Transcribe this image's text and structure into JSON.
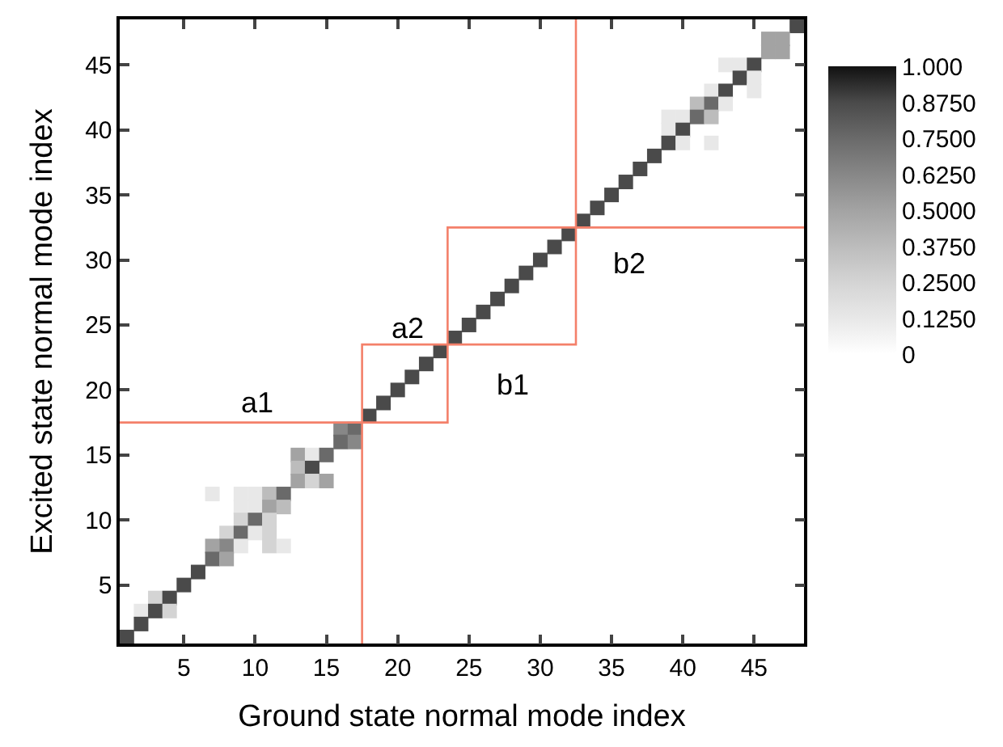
{
  "chart_data": {
    "type": "heatmap",
    "xlabel": "Ground state normal mode index",
    "ylabel": "Excited state normal mode index",
    "x": [
      1,
      2,
      3,
      4,
      5,
      6,
      7,
      8,
      9,
      10,
      11,
      12,
      13,
      14,
      15,
      16,
      17,
      18,
      19,
      20,
      21,
      22,
      23,
      24,
      25,
      26,
      27,
      28,
      29,
      30,
      31,
      32,
      33,
      34,
      35,
      36,
      37,
      38,
      39,
      40,
      41,
      42,
      43,
      44,
      45,
      46,
      47,
      48
    ],
    "y": [
      48,
      47,
      46,
      45,
      44,
      43,
      42,
      41,
      40,
      39,
      38,
      37,
      36,
      35,
      34,
      33,
      32,
      31,
      30,
      29,
      28,
      27,
      26,
      25,
      24,
      23,
      22,
      21,
      20,
      19,
      18,
      17,
      16,
      15,
      14,
      13,
      12,
      11,
      10,
      9,
      8,
      7,
      6,
      5,
      4,
      3,
      2,
      1
    ],
    "xlim": [
      0.5,
      48.5
    ],
    "ylim": [
      0.5,
      48.5
    ],
    "xticks": [
      5,
      10,
      15,
      20,
      25,
      30,
      35,
      40,
      45
    ],
    "yticks": [
      5,
      10,
      15,
      20,
      25,
      30,
      35,
      40,
      45
    ],
    "cticks": [
      0,
      {
        "value": 0.125,
        "label": "0.1250"
      },
      {
        "value": 0.25,
        "label": "0.2500"
      },
      {
        "value": 0.375,
        "label": "0.3750"
      },
      {
        "value": 0.5,
        "label": "0.5000"
      },
      {
        "value": 0.625,
        "label": "0.6250"
      },
      {
        "value": 0.75,
        "label": "0.7500"
      },
      {
        "value": 0.875,
        "label": "0.8750"
      },
      {
        "value": 1.0,
        "label": "1.000"
      }
    ],
    "colors": [
      "#ffffff",
      "#e8e8e8",
      "#d4d4d4",
      "#bcbcbc",
      "#a3a3a3",
      "#878787",
      "#6a6a6a",
      "#4a4a4a",
      "#111111"
    ],
    "cells": [
      [
        null,
        null,
        null,
        null,
        null,
        null,
        null,
        null,
        null,
        null,
        null,
        null,
        null,
        null,
        null,
        null,
        null,
        null,
        null,
        null,
        null,
        null,
        null,
        null,
        null,
        null,
        null,
        null,
        null,
        null,
        null,
        null,
        null,
        null,
        null,
        null,
        null,
        null,
        null,
        null,
        null,
        null,
        null,
        null,
        null,
        null,
        null,
        0.875
      ],
      [
        null,
        null,
        null,
        null,
        null,
        null,
        null,
        null,
        null,
        null,
        null,
        null,
        null,
        null,
        null,
        null,
        null,
        null,
        null,
        null,
        null,
        null,
        null,
        null,
        null,
        null,
        null,
        null,
        null,
        null,
        null,
        null,
        null,
        null,
        null,
        null,
        null,
        null,
        null,
        null,
        null,
        null,
        null,
        null,
        null,
        0.5,
        0.5,
        null
      ],
      [
        null,
        null,
        null,
        null,
        null,
        null,
        null,
        null,
        null,
        null,
        null,
        null,
        null,
        null,
        null,
        null,
        null,
        null,
        null,
        null,
        null,
        null,
        null,
        null,
        null,
        null,
        null,
        null,
        null,
        null,
        null,
        null,
        null,
        null,
        null,
        null,
        null,
        null,
        null,
        null,
        null,
        null,
        null,
        null,
        null,
        0.5,
        0.5,
        null
      ],
      [
        null,
        null,
        null,
        null,
        null,
        null,
        null,
        null,
        null,
        null,
        null,
        null,
        null,
        null,
        null,
        null,
        null,
        null,
        null,
        null,
        null,
        null,
        null,
        null,
        null,
        null,
        null,
        null,
        null,
        null,
        null,
        null,
        null,
        null,
        null,
        null,
        null,
        null,
        null,
        null,
        null,
        null,
        0.125,
        0.125,
        0.875,
        null,
        null,
        null
      ],
      [
        null,
        null,
        null,
        null,
        null,
        null,
        null,
        null,
        null,
        null,
        null,
        null,
        null,
        null,
        null,
        null,
        null,
        null,
        null,
        null,
        null,
        null,
        null,
        null,
        null,
        null,
        null,
        null,
        null,
        null,
        null,
        null,
        null,
        null,
        null,
        null,
        null,
        null,
        null,
        null,
        null,
        null,
        null,
        0.875,
        0.125,
        null,
        null,
        null
      ],
      [
        null,
        null,
        null,
        null,
        null,
        null,
        null,
        null,
        null,
        null,
        null,
        null,
        null,
        null,
        null,
        null,
        null,
        null,
        null,
        null,
        null,
        null,
        null,
        null,
        null,
        null,
        null,
        null,
        null,
        null,
        null,
        null,
        null,
        null,
        null,
        null,
        null,
        null,
        null,
        null,
        null,
        0.125,
        0.875,
        null,
        0.125,
        null,
        null,
        null
      ],
      [
        null,
        null,
        null,
        null,
        null,
        null,
        null,
        null,
        null,
        null,
        null,
        null,
        null,
        null,
        null,
        null,
        null,
        null,
        null,
        null,
        null,
        null,
        null,
        null,
        null,
        null,
        null,
        null,
        null,
        null,
        null,
        null,
        null,
        null,
        null,
        null,
        null,
        null,
        null,
        null,
        0.375,
        0.75,
        0.125,
        null,
        null,
        null,
        null,
        null
      ],
      [
        null,
        null,
        null,
        null,
        null,
        null,
        null,
        null,
        null,
        null,
        null,
        null,
        null,
        null,
        null,
        null,
        null,
        null,
        null,
        null,
        null,
        null,
        null,
        null,
        null,
        null,
        null,
        null,
        null,
        null,
        null,
        null,
        null,
        null,
        null,
        null,
        null,
        null,
        0.125,
        0.125,
        0.75,
        0.375,
        null,
        null,
        null,
        null,
        null,
        null
      ],
      [
        null,
        null,
        null,
        null,
        null,
        null,
        null,
        null,
        null,
        null,
        null,
        null,
        null,
        null,
        null,
        null,
        null,
        null,
        null,
        null,
        null,
        null,
        null,
        null,
        null,
        null,
        null,
        null,
        null,
        null,
        null,
        null,
        null,
        null,
        null,
        null,
        null,
        null,
        0.125,
        0.875,
        null,
        null,
        null,
        null,
        null,
        null,
        null,
        null
      ],
      [
        null,
        null,
        null,
        null,
        null,
        null,
        null,
        null,
        null,
        null,
        null,
        null,
        null,
        null,
        null,
        null,
        null,
        null,
        null,
        null,
        null,
        null,
        null,
        null,
        null,
        null,
        null,
        null,
        null,
        null,
        null,
        null,
        null,
        null,
        null,
        null,
        null,
        null,
        0.875,
        0.125,
        null,
        0.125,
        null,
        null,
        null,
        null,
        null,
        null
      ],
      [
        null,
        null,
        null,
        null,
        null,
        null,
        null,
        null,
        null,
        null,
        null,
        null,
        null,
        null,
        null,
        null,
        null,
        null,
        null,
        null,
        null,
        null,
        null,
        null,
        null,
        null,
        null,
        null,
        null,
        null,
        null,
        null,
        null,
        null,
        null,
        null,
        null,
        0.875,
        null,
        null,
        null,
        null,
        null,
        null,
        null,
        null,
        null,
        null
      ],
      [
        null,
        null,
        null,
        null,
        null,
        null,
        null,
        null,
        null,
        null,
        null,
        null,
        null,
        null,
        null,
        null,
        null,
        null,
        null,
        null,
        null,
        null,
        null,
        null,
        null,
        null,
        null,
        null,
        null,
        null,
        null,
        null,
        null,
        null,
        null,
        null,
        0.875,
        null,
        null,
        null,
        null,
        null,
        null,
        null,
        null,
        null,
        null,
        null
      ],
      [
        null,
        null,
        null,
        null,
        null,
        null,
        null,
        null,
        null,
        null,
        null,
        null,
        null,
        null,
        null,
        null,
        null,
        null,
        null,
        null,
        null,
        null,
        null,
        null,
        null,
        null,
        null,
        null,
        null,
        null,
        null,
        null,
        null,
        null,
        null,
        0.875,
        null,
        null,
        null,
        null,
        null,
        null,
        null,
        null,
        null,
        null,
        null,
        null
      ],
      [
        null,
        null,
        null,
        null,
        null,
        null,
        null,
        null,
        null,
        null,
        null,
        null,
        null,
        null,
        null,
        null,
        null,
        null,
        null,
        null,
        null,
        null,
        null,
        null,
        null,
        null,
        null,
        null,
        null,
        null,
        null,
        null,
        null,
        null,
        0.875,
        null,
        null,
        null,
        null,
        null,
        null,
        null,
        null,
        null,
        null,
        null,
        null,
        null
      ],
      [
        null,
        null,
        null,
        null,
        null,
        null,
        null,
        null,
        null,
        null,
        null,
        null,
        null,
        null,
        null,
        null,
        null,
        null,
        null,
        null,
        null,
        null,
        null,
        null,
        null,
        null,
        null,
        null,
        null,
        null,
        null,
        null,
        null,
        0.875,
        null,
        null,
        null,
        null,
        null,
        null,
        null,
        null,
        null,
        null,
        null,
        null,
        null,
        null
      ],
      [
        null,
        null,
        null,
        null,
        null,
        null,
        null,
        null,
        null,
        null,
        null,
        null,
        null,
        null,
        null,
        null,
        null,
        null,
        null,
        null,
        null,
        null,
        null,
        null,
        null,
        null,
        null,
        null,
        null,
        null,
        null,
        null,
        0.875,
        null,
        null,
        null,
        null,
        null,
        null,
        null,
        null,
        null,
        null,
        null,
        null,
        null,
        null,
        null
      ],
      [
        null,
        null,
        null,
        null,
        null,
        null,
        null,
        null,
        null,
        null,
        null,
        null,
        null,
        null,
        null,
        null,
        null,
        null,
        null,
        null,
        null,
        null,
        null,
        null,
        null,
        null,
        null,
        null,
        null,
        null,
        null,
        0.875,
        null,
        null,
        null,
        null,
        null,
        null,
        null,
        null,
        null,
        null,
        null,
        null,
        null,
        null,
        null,
        null
      ],
      [
        null,
        null,
        null,
        null,
        null,
        null,
        null,
        null,
        null,
        null,
        null,
        null,
        null,
        null,
        null,
        null,
        null,
        null,
        null,
        null,
        null,
        null,
        null,
        null,
        null,
        null,
        null,
        null,
        null,
        null,
        0.875,
        null,
        null,
        null,
        null,
        null,
        null,
        null,
        null,
        null,
        null,
        null,
        null,
        null,
        null,
        null,
        null,
        null
      ],
      [
        null,
        null,
        null,
        null,
        null,
        null,
        null,
        null,
        null,
        null,
        null,
        null,
        null,
        null,
        null,
        null,
        null,
        null,
        null,
        null,
        null,
        null,
        null,
        null,
        null,
        null,
        null,
        null,
        null,
        0.875,
        null,
        null,
        null,
        null,
        null,
        null,
        null,
        null,
        null,
        null,
        null,
        null,
        null,
        null,
        null,
        null,
        null,
        null
      ],
      [
        null,
        null,
        null,
        null,
        null,
        null,
        null,
        null,
        null,
        null,
        null,
        null,
        null,
        null,
        null,
        null,
        null,
        null,
        null,
        null,
        null,
        null,
        null,
        null,
        null,
        null,
        null,
        null,
        0.875,
        null,
        null,
        null,
        null,
        null,
        null,
        null,
        null,
        null,
        null,
        null,
        null,
        null,
        null,
        null,
        null,
        null,
        null,
        null
      ],
      [
        null,
        null,
        null,
        null,
        null,
        null,
        null,
        null,
        null,
        null,
        null,
        null,
        null,
        null,
        null,
        null,
        null,
        null,
        null,
        null,
        null,
        null,
        null,
        null,
        null,
        null,
        null,
        0.875,
        null,
        null,
        null,
        null,
        null,
        null,
        null,
        null,
        null,
        null,
        null,
        null,
        null,
        null,
        null,
        null,
        null,
        null,
        null,
        null
      ],
      [
        null,
        null,
        null,
        null,
        null,
        null,
        null,
        null,
        null,
        null,
        null,
        null,
        null,
        null,
        null,
        null,
        null,
        null,
        null,
        null,
        null,
        null,
        null,
        null,
        null,
        null,
        0.875,
        null,
        null,
        null,
        null,
        null,
        null,
        null,
        null,
        null,
        null,
        null,
        null,
        null,
        null,
        null,
        null,
        null,
        null,
        null,
        null,
        null
      ],
      [
        null,
        null,
        null,
        null,
        null,
        null,
        null,
        null,
        null,
        null,
        null,
        null,
        null,
        null,
        null,
        null,
        null,
        null,
        null,
        null,
        null,
        null,
        null,
        null,
        null,
        0.875,
        null,
        null,
        null,
        null,
        null,
        null,
        null,
        null,
        null,
        null,
        null,
        null,
        null,
        null,
        null,
        null,
        null,
        null,
        null,
        null,
        null,
        null
      ],
      [
        null,
        null,
        null,
        null,
        null,
        null,
        null,
        null,
        null,
        null,
        null,
        null,
        null,
        null,
        null,
        null,
        null,
        null,
        null,
        null,
        null,
        null,
        null,
        null,
        0.875,
        null,
        null,
        null,
        null,
        null,
        null,
        null,
        null,
        null,
        null,
        null,
        null,
        null,
        null,
        null,
        null,
        null,
        null,
        null,
        null,
        null,
        null,
        null
      ],
      [
        null,
        null,
        null,
        null,
        null,
        null,
        null,
        null,
        null,
        null,
        null,
        null,
        null,
        null,
        null,
        null,
        null,
        null,
        null,
        null,
        null,
        null,
        null,
        0.875,
        null,
        null,
        null,
        null,
        null,
        null,
        null,
        null,
        null,
        null,
        null,
        null,
        null,
        null,
        null,
        null,
        null,
        null,
        null,
        null,
        null,
        null,
        null,
        null
      ],
      [
        null,
        null,
        null,
        null,
        null,
        null,
        null,
        null,
        null,
        null,
        null,
        null,
        null,
        null,
        null,
        null,
        null,
        null,
        null,
        null,
        null,
        null,
        0.875,
        null,
        null,
        null,
        null,
        null,
        null,
        null,
        null,
        null,
        null,
        null,
        null,
        null,
        null,
        null,
        null,
        null,
        null,
        null,
        null,
        null,
        null,
        null,
        null,
        null
      ],
      [
        null,
        null,
        null,
        null,
        null,
        null,
        null,
        null,
        null,
        null,
        null,
        null,
        null,
        null,
        null,
        null,
        null,
        null,
        null,
        null,
        null,
        0.875,
        null,
        null,
        null,
        null,
        null,
        null,
        null,
        null,
        null,
        null,
        null,
        null,
        null,
        null,
        null,
        null,
        null,
        null,
        null,
        null,
        null,
        null,
        null,
        null,
        null,
        null
      ],
      [
        null,
        null,
        null,
        null,
        null,
        null,
        null,
        null,
        null,
        null,
        null,
        null,
        null,
        null,
        null,
        null,
        null,
        null,
        null,
        null,
        0.875,
        null,
        null,
        null,
        null,
        null,
        null,
        null,
        null,
        null,
        null,
        null,
        null,
        null,
        null,
        null,
        null,
        null,
        null,
        null,
        null,
        null,
        null,
        null,
        null,
        null,
        null,
        null
      ],
      [
        null,
        null,
        null,
        null,
        null,
        null,
        null,
        null,
        null,
        null,
        null,
        null,
        null,
        null,
        null,
        null,
        null,
        null,
        null,
        0.875,
        null,
        null,
        null,
        null,
        null,
        null,
        null,
        null,
        null,
        null,
        null,
        null,
        null,
        null,
        null,
        null,
        null,
        null,
        null,
        null,
        null,
        null,
        null,
        null,
        null,
        null,
        null,
        null
      ],
      [
        null,
        null,
        null,
        null,
        null,
        null,
        null,
        null,
        null,
        null,
        null,
        null,
        null,
        null,
        null,
        null,
        null,
        null,
        0.875,
        null,
        null,
        null,
        null,
        null,
        null,
        null,
        null,
        null,
        null,
        null,
        null,
        null,
        null,
        null,
        null,
        null,
        null,
        null,
        null,
        null,
        null,
        null,
        null,
        null,
        null,
        null,
        null,
        null
      ],
      [
        null,
        null,
        null,
        null,
        null,
        null,
        null,
        null,
        null,
        null,
        null,
        null,
        null,
        null,
        null,
        null,
        null,
        0.875,
        null,
        null,
        null,
        null,
        null,
        null,
        null,
        null,
        null,
        null,
        null,
        null,
        null,
        null,
        null,
        null,
        null,
        null,
        null,
        null,
        null,
        null,
        null,
        null,
        null,
        null,
        null,
        null,
        null,
        null
      ],
      [
        null,
        null,
        null,
        null,
        null,
        null,
        null,
        null,
        null,
        null,
        null,
        null,
        null,
        null,
        null,
        0.625,
        0.75,
        null,
        null,
        null,
        null,
        null,
        null,
        null,
        null,
        null,
        null,
        null,
        null,
        null,
        null,
        null,
        null,
        null,
        null,
        null,
        null,
        null,
        null,
        null,
        null,
        null,
        null,
        null,
        null,
        null,
        null,
        null
      ],
      [
        null,
        null,
        null,
        null,
        null,
        null,
        null,
        null,
        null,
        null,
        null,
        null,
        null,
        null,
        null,
        0.75,
        0.625,
        null,
        null,
        null,
        null,
        null,
        null,
        null,
        null,
        null,
        null,
        null,
        null,
        null,
        null,
        null,
        null,
        null,
        null,
        null,
        null,
        null,
        null,
        null,
        null,
        null,
        null,
        null,
        null,
        null,
        null,
        null
      ],
      [
        null,
        null,
        null,
        null,
        null,
        null,
        null,
        null,
        null,
        null,
        null,
        null,
        0.5,
        0.125,
        0.75,
        null,
        null,
        null,
        null,
        null,
        null,
        null,
        null,
        null,
        null,
        null,
        null,
        null,
        null,
        null,
        null,
        null,
        null,
        null,
        null,
        null,
        null,
        null,
        null,
        null,
        null,
        null,
        null,
        null,
        null,
        null,
        null,
        null
      ],
      [
        null,
        null,
        null,
        null,
        null,
        null,
        null,
        null,
        null,
        null,
        null,
        null,
        0.375,
        0.875,
        null,
        null,
        null,
        null,
        null,
        null,
        null,
        null,
        null,
        null,
        null,
        null,
        null,
        null,
        null,
        null,
        null,
        null,
        null,
        null,
        null,
        null,
        null,
        null,
        null,
        null,
        null,
        null,
        null,
        null,
        null,
        null,
        null,
        null
      ],
      [
        null,
        null,
        null,
        null,
        null,
        null,
        null,
        null,
        null,
        null,
        null,
        null,
        0.5,
        0.25,
        0.5,
        null,
        null,
        null,
        null,
        null,
        null,
        null,
        null,
        null,
        null,
        null,
        null,
        null,
        null,
        null,
        null,
        null,
        null,
        null,
        null,
        null,
        null,
        null,
        null,
        null,
        null,
        null,
        null,
        null,
        null,
        null,
        null,
        null
      ],
      [
        null,
        null,
        null,
        null,
        null,
        null,
        0.125,
        null,
        0.125,
        0.125,
        0.375,
        0.75,
        null,
        null,
        null,
        null,
        null,
        null,
        null,
        null,
        null,
        null,
        null,
        null,
        null,
        null,
        null,
        null,
        null,
        null,
        null,
        null,
        null,
        null,
        null,
        null,
        null,
        null,
        null,
        null,
        null,
        null,
        null,
        null,
        null,
        null,
        null,
        null
      ],
      [
        null,
        null,
        null,
        null,
        null,
        null,
        null,
        null,
        0.125,
        0.125,
        0.5,
        0.375,
        null,
        null,
        null,
        null,
        null,
        null,
        null,
        null,
        null,
        null,
        null,
        null,
        null,
        null,
        null,
        null,
        null,
        null,
        null,
        null,
        null,
        null,
        null,
        null,
        null,
        null,
        null,
        null,
        null,
        null,
        null,
        null,
        null,
        null,
        null,
        null
      ],
      [
        null,
        null,
        null,
        null,
        null,
        null,
        null,
        null,
        0.25,
        0.75,
        0.25,
        null,
        null,
        null,
        null,
        null,
        null,
        null,
        null,
        null,
        null,
        null,
        null,
        null,
        null,
        null,
        null,
        null,
        null,
        null,
        null,
        null,
        null,
        null,
        null,
        null,
        null,
        null,
        null,
        null,
        null,
        null,
        null,
        null,
        null,
        null,
        null,
        null
      ],
      [
        null,
        null,
        null,
        null,
        null,
        null,
        null,
        0.25,
        0.75,
        0.125,
        0.25,
        null,
        null,
        null,
        null,
        null,
        null,
        null,
        null,
        null,
        null,
        null,
        null,
        null,
        null,
        null,
        null,
        null,
        null,
        null,
        null,
        null,
        null,
        null,
        null,
        null,
        null,
        null,
        null,
        null,
        null,
        null,
        null,
        null,
        null,
        null,
        null,
        null
      ],
      [
        null,
        null,
        null,
        null,
        null,
        null,
        0.5,
        0.625,
        0.125,
        null,
        0.25,
        0.125,
        null,
        null,
        null,
        null,
        null,
        null,
        null,
        null,
        null,
        null,
        null,
        null,
        null,
        null,
        null,
        null,
        null,
        null,
        null,
        null,
        null,
        null,
        null,
        null,
        null,
        null,
        null,
        null,
        null,
        null,
        null,
        null,
        null,
        null,
        null,
        null
      ],
      [
        null,
        null,
        null,
        null,
        null,
        null,
        0.75,
        0.5,
        null,
        null,
        null,
        null,
        null,
        null,
        null,
        null,
        null,
        null,
        null,
        null,
        null,
        null,
        null,
        null,
        null,
        null,
        null,
        null,
        null,
        null,
        null,
        null,
        null,
        null,
        null,
        null,
        null,
        null,
        null,
        null,
        null,
        null,
        null,
        null,
        null,
        null,
        null,
        null
      ],
      [
        null,
        null,
        null,
        null,
        null,
        0.875,
        null,
        null,
        null,
        null,
        null,
        null,
        null,
        null,
        null,
        null,
        null,
        null,
        null,
        null,
        null,
        null,
        null,
        null,
        null,
        null,
        null,
        null,
        null,
        null,
        null,
        null,
        null,
        null,
        null,
        null,
        null,
        null,
        null,
        null,
        null,
        null,
        null,
        null,
        null,
        null,
        null,
        null
      ],
      [
        null,
        null,
        null,
        null,
        0.875,
        null,
        null,
        null,
        null,
        null,
        null,
        null,
        null,
        null,
        null,
        null,
        null,
        null,
        null,
        null,
        null,
        null,
        null,
        null,
        null,
        null,
        null,
        null,
        null,
        null,
        null,
        null,
        null,
        null,
        null,
        null,
        null,
        null,
        null,
        null,
        null,
        null,
        null,
        null,
        null,
        null,
        null,
        null
      ],
      [
        null,
        null,
        0.25,
        0.875,
        null,
        null,
        null,
        null,
        null,
        null,
        null,
        null,
        null,
        null,
        null,
        null,
        null,
        null,
        null,
        null,
        null,
        null,
        null,
        null,
        null,
        null,
        null,
        null,
        null,
        null,
        null,
        null,
        null,
        null,
        null,
        null,
        null,
        null,
        null,
        null,
        null,
        null,
        null,
        null,
        null,
        null,
        null,
        null
      ],
      [
        null,
        0.125,
        0.875,
        0.25,
        null,
        null,
        null,
        null,
        null,
        null,
        null,
        null,
        null,
        null,
        null,
        null,
        null,
        null,
        null,
        null,
        null,
        null,
        null,
        null,
        null,
        null,
        null,
        null,
        null,
        null,
        null,
        null,
        null,
        null,
        null,
        null,
        null,
        null,
        null,
        null,
        null,
        null,
        null,
        null,
        null,
        null,
        null,
        null
      ],
      [
        null,
        0.875,
        null,
        null,
        null,
        null,
        null,
        null,
        null,
        null,
        null,
        null,
        null,
        null,
        null,
        null,
        null,
        null,
        null,
        null,
        null,
        null,
        null,
        null,
        null,
        null,
        null,
        null,
        null,
        null,
        null,
        null,
        null,
        null,
        null,
        null,
        null,
        null,
        null,
        null,
        null,
        null,
        null,
        null,
        null,
        null,
        null,
        null
      ],
      [
        0.875,
        null,
        null,
        null,
        null,
        null,
        null,
        null,
        null,
        null,
        null,
        null,
        null,
        null,
        null,
        null,
        null,
        null,
        null,
        null,
        null,
        null,
        null,
        null,
        null,
        null,
        null,
        null,
        null,
        null,
        null,
        null,
        null,
        null,
        null,
        null,
        null,
        null,
        null,
        null,
        null,
        null,
        null,
        null,
        null,
        null,
        null,
        null
      ]
    ],
    "series": [
      {
        "type": "line",
        "color": "#f4806a",
        "x": [
          0.5,
          23.5,
          23.5,
          48.5
        ],
        "values": [
          17.5,
          17.5,
          32.5,
          32.5
        ]
      },
      {
        "type": "line",
        "color": "#f4806a",
        "x": [
          17.5,
          17.5,
          32.5,
          32.5
        ],
        "values": [
          0.5,
          23.5,
          23.5,
          48.5
        ]
      }
    ],
    "annotations": [
      "a1",
      "a2",
      "b1",
      "b2"
    ]
  }
}
